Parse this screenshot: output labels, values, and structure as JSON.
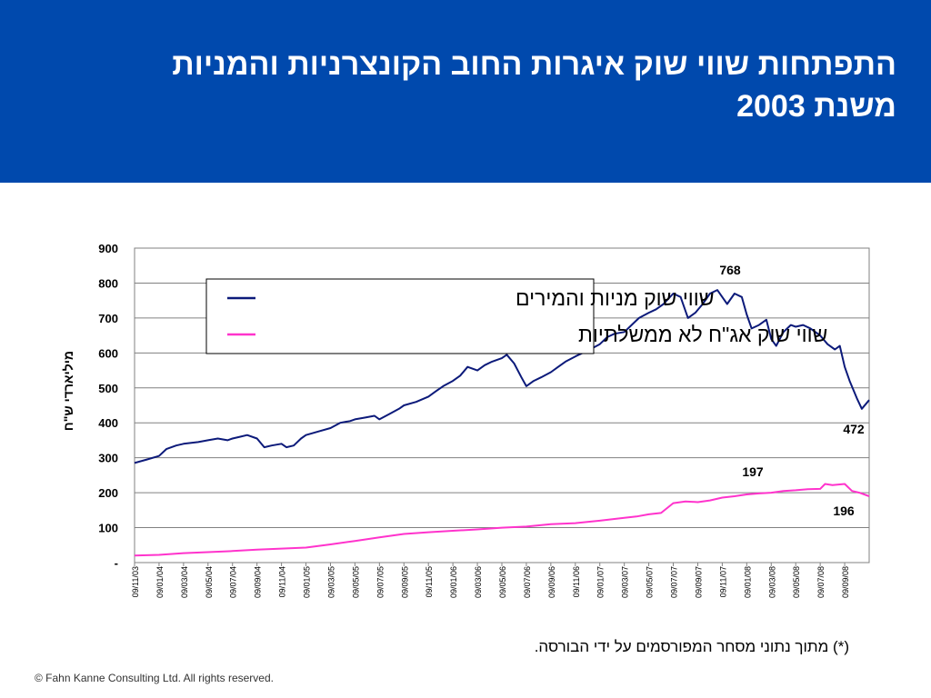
{
  "header": {
    "title_line1": "התפתחות שווי שוק איגרות החוב הקונצרניות והמניות",
    "title_line2": "משנת 2003",
    "color": "#0049ad"
  },
  "chart_data": {
    "type": "line",
    "ylabel": "מיליארדי ש\"ח",
    "ylim": [
      0,
      900
    ],
    "y_ticks": [
      0,
      100,
      200,
      300,
      400,
      500,
      600,
      700,
      800,
      900
    ],
    "y_tick_labels": [
      "-",
      "100",
      "200",
      "300",
      "400",
      "500",
      "600",
      "700",
      "800",
      "900"
    ],
    "x_tick_labels": [
      "09/11/03",
      "09/01/04",
      "09/03/04",
      "09/05/04",
      "09/07/04",
      "09/09/04",
      "09/11/04",
      "09/01/05",
      "09/03/05",
      "09/05/05",
      "09/07/05",
      "09/09/05",
      "09/11/05",
      "09/01/06",
      "09/03/06",
      "09/05/06",
      "09/07/06",
      "09/09/06",
      "09/11/06",
      "09/01/07",
      "09/03/07",
      "09/05/07",
      "09/07/07",
      "09/09/07",
      "09/11/07",
      "09/01/08",
      "09/03/08",
      "09/05/08",
      "09/07/08",
      "09/09/08"
    ],
    "grid": true,
    "legend_position": "top-left",
    "series": [
      {
        "name": "שווי שוק מניות והמירים",
        "color": "#0c1a7a",
        "x": [
          0,
          0.5,
          1,
          1.3,
          1.7,
          2,
          2.6,
          3,
          3.4,
          3.8,
          4,
          4.3,
          4.6,
          5,
          5.3,
          5.6,
          6,
          6.2,
          6.5,
          6.8,
          7,
          7.5,
          8,
          8.4,
          8.8,
          9,
          9.4,
          9.8,
          10,
          10.4,
          10.8,
          11,
          11.5,
          12,
          12.3,
          12.6,
          13,
          13.3,
          13.6,
          14,
          14.3,
          14.6,
          15,
          15.2,
          15.5,
          15.8,
          16,
          16.3,
          16.6,
          17,
          17.3,
          17.6,
          18,
          18.3,
          18.6,
          19,
          19.3,
          19.6,
          20,
          20.3,
          20.6,
          21,
          21.3,
          21.6,
          22,
          22.3,
          22.6,
          22.9,
          23.2,
          23.5,
          23.8,
          24,
          24.2,
          24.5,
          24.8,
          25,
          25.2,
          25.5,
          25.8,
          26,
          26.2,
          26.5,
          26.8,
          27,
          27.3,
          27.6,
          28,
          28.3,
          28.6,
          28.8,
          29,
          29.2,
          29.5,
          29.7,
          30
        ],
        "values": [
          285,
          295,
          305,
          325,
          335,
          340,
          345,
          350,
          355,
          350,
          355,
          360,
          365,
          355,
          330,
          335,
          340,
          330,
          335,
          355,
          365,
          375,
          385,
          400,
          405,
          410,
          415,
          420,
          410,
          425,
          440,
          450,
          460,
          475,
          490,
          505,
          520,
          535,
          560,
          550,
          565,
          575,
          585,
          595,
          570,
          530,
          505,
          520,
          530,
          545,
          560,
          575,
          590,
          600,
          610,
          625,
          645,
          655,
          660,
          680,
          700,
          715,
          725,
          740,
          770,
          760,
          700,
          715,
          740,
          770,
          780,
          760,
          740,
          770,
          760,
          710,
          670,
          680,
          695,
          640,
          620,
          660,
          680,
          675,
          680,
          670,
          650,
          625,
          610,
          620,
          560,
          520,
          470,
          440,
          465
        ]
      },
      {
        "name": "שווי שוק אג\"ח לא ממשלתיות",
        "color": "#ff33cc",
        "x": [
          0,
          1,
          2,
          3,
          4,
          5,
          6,
          7,
          8,
          9,
          10,
          11,
          12,
          13,
          14,
          15,
          16,
          17,
          18,
          19,
          20,
          20.5,
          21,
          21.5,
          22,
          22.5,
          23,
          23.5,
          24,
          24.5,
          25,
          25.5,
          26,
          26.5,
          27,
          27.5,
          28,
          28.2,
          28.5,
          29,
          29.3,
          29.6,
          30
        ],
        "values": [
          20,
          22,
          27,
          30,
          33,
          37,
          40,
          43,
          52,
          62,
          72,
          82,
          87,
          91,
          95,
          100,
          103,
          110,
          113,
          120,
          128,
          132,
          138,
          142,
          170,
          175,
          173,
          178,
          186,
          190,
          195,
          198,
          200,
          205,
          207,
          210,
          211,
          225,
          222,
          225,
          205,
          200,
          190
        ]
      }
    ],
    "annotations": [
      "768",
      "472",
      "197",
      "196"
    ]
  },
  "footnote": "(*) מתוך נתוני מסחר המפורסמים על ידי הבורסה.",
  "copyright": "© Fahn Kanne Consulting Ltd. All rights reserved."
}
